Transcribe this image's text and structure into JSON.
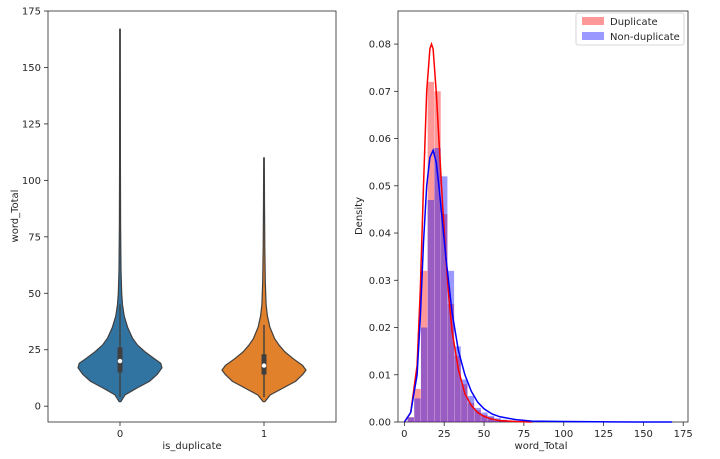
{
  "chart_data": [
    {
      "type": "violin",
      "title": "",
      "xlabel": "is_duplicate",
      "ylabel": "word_Total",
      "categories": [
        "0",
        "1"
      ],
      "ylim": [
        -7,
        175
      ],
      "yticks": [
        0,
        25,
        50,
        75,
        100,
        125,
        150,
        175
      ],
      "colors": [
        "#3274a1",
        "#e1812c"
      ],
      "violins": [
        {
          "category": "0",
          "min": 2,
          "max": 167,
          "q1": 15,
          "median": 20,
          "q3": 26,
          "whisker_low": 4,
          "whisker_high": 45,
          "profile": [
            [
              2,
              0.02
            ],
            [
              5,
              0.12
            ],
            [
              8,
              0.4
            ],
            [
              11,
              0.7
            ],
            [
              14,
              0.88
            ],
            [
              17,
              1.0
            ],
            [
              19,
              0.97
            ],
            [
              21,
              0.82
            ],
            [
              24,
              0.6
            ],
            [
              27,
              0.42
            ],
            [
              30,
              0.3
            ],
            [
              35,
              0.18
            ],
            [
              40,
              0.1
            ],
            [
              45,
              0.06
            ],
            [
              50,
              0.04
            ],
            [
              60,
              0.025
            ],
            [
              80,
              0.015
            ],
            [
              110,
              0.01
            ],
            [
              167,
              0.006
            ]
          ]
        },
        {
          "category": "1",
          "min": 2,
          "max": 110,
          "q1": 14,
          "median": 18,
          "q3": 23,
          "whisker_low": 4,
          "whisker_high": 36,
          "profile": [
            [
              2,
              0.02
            ],
            [
              5,
              0.15
            ],
            [
              8,
              0.45
            ],
            [
              11,
              0.75
            ],
            [
              14,
              0.92
            ],
            [
              16,
              1.0
            ],
            [
              18,
              0.92
            ],
            [
              21,
              0.7
            ],
            [
              24,
              0.5
            ],
            [
              27,
              0.36
            ],
            [
              30,
              0.25
            ],
            [
              35,
              0.14
            ],
            [
              40,
              0.08
            ],
            [
              45,
              0.05
            ],
            [
              55,
              0.03
            ],
            [
              70,
              0.018
            ],
            [
              90,
              0.012
            ],
            [
              110,
              0.008
            ]
          ]
        }
      ]
    },
    {
      "type": "histogram+kde",
      "title": "",
      "xlabel": "word_Total",
      "ylabel": "Density",
      "xlim": [
        -4,
        178
      ],
      "ylim": [
        0,
        0.087
      ],
      "xticks": [
        0,
        25,
        50,
        75,
        100,
        125,
        150,
        175
      ],
      "yticks": [
        "0.00",
        "0.01",
        "0.02",
        "0.03",
        "0.04",
        "0.05",
        "0.06",
        "0.07",
        "0.08"
      ],
      "legend": {
        "position": "top-right",
        "entries": [
          "Duplicate",
          "Non-duplicate"
        ]
      },
      "series": [
        {
          "name": "Duplicate",
          "color": "#ff0000",
          "bin_width": 4.2,
          "bin_start": 2,
          "hist": [
            0.001,
            0.007,
            0.032,
            0.072,
            0.07,
            0.044,
            0.025,
            0.014,
            0.008,
            0.004,
            0.0025,
            0.0015,
            0.001,
            0.0005,
            0.0003,
            0.0001
          ],
          "kde_x": [
            0,
            4,
            8,
            10,
            12,
            14,
            16,
            17,
            18,
            20,
            22,
            24,
            26,
            28,
            30,
            34,
            38,
            42,
            46,
            50,
            55,
            60,
            70,
            80
          ],
          "kde_y": [
            0.0,
            0.002,
            0.012,
            0.028,
            0.05,
            0.07,
            0.079,
            0.08,
            0.079,
            0.07,
            0.058,
            0.046,
            0.035,
            0.026,
            0.019,
            0.011,
            0.006,
            0.0035,
            0.002,
            0.0012,
            0.0006,
            0.0003,
            0.0001,
            0.0
          ]
        },
        {
          "name": "Non-duplicate",
          "color": "#0000ff",
          "bin_width": 4.2,
          "bin_start": 2,
          "hist": [
            0.001,
            0.005,
            0.02,
            0.047,
            0.058,
            0.052,
            0.032,
            0.016,
            0.009,
            0.0055,
            0.003,
            0.002,
            0.0013,
            0.0008,
            0.0005,
            0.0003,
            0.0002,
            0.0001
          ],
          "kde_x": [
            0,
            4,
            8,
            10,
            12,
            14,
            16,
            18,
            20,
            22,
            24,
            26,
            28,
            30,
            34,
            38,
            42,
            46,
            50,
            55,
            60,
            70,
            80,
            100,
            130,
            168
          ],
          "kde_y": [
            0.0,
            0.002,
            0.01,
            0.022,
            0.038,
            0.05,
            0.056,
            0.0575,
            0.055,
            0.049,
            0.042,
            0.035,
            0.029,
            0.023,
            0.015,
            0.01,
            0.0065,
            0.0042,
            0.0028,
            0.0017,
            0.0011,
            0.0005,
            0.0002,
            0.0001,
            3e-05,
            0.0
          ]
        }
      ]
    }
  ]
}
